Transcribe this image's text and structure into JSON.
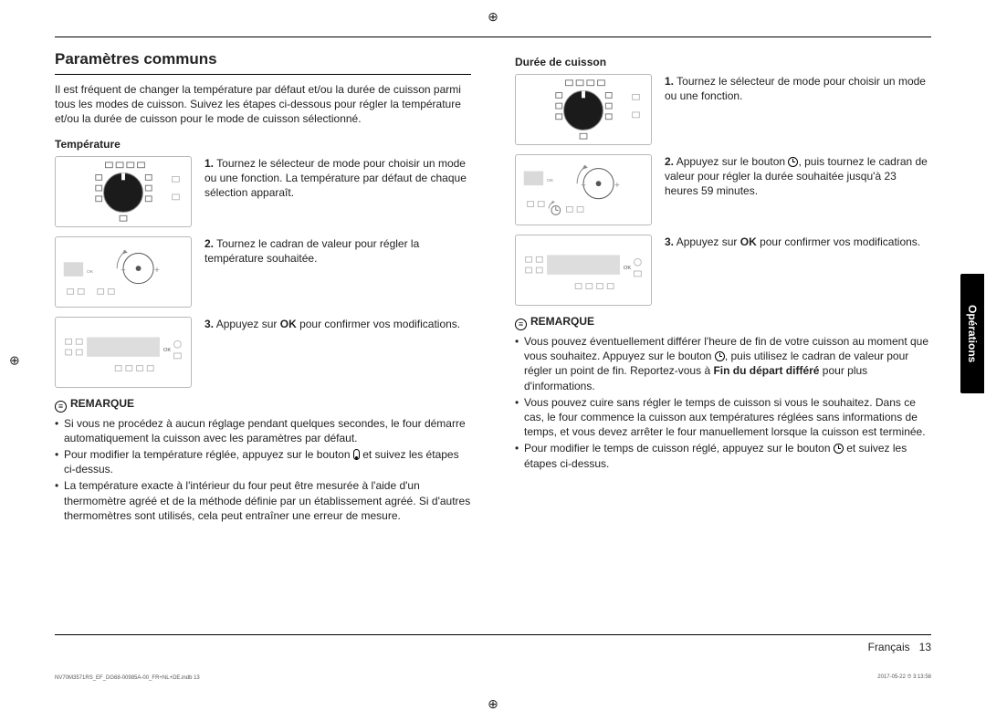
{
  "section_title": "Paramètres communs",
  "intro": "Il est fréquent de changer la température par défaut et/ou la durée de cuisson parmi tous les modes de cuisson. Suivez les étapes ci-dessous pour régler la température et/ou la durée de cuisson pour le mode de cuisson sélectionné.",
  "left": {
    "subhead": "Température",
    "steps": [
      {
        "n": "1.",
        "t": "Tournez le sélecteur de mode pour choisir un mode ou une fonction. La température par défaut de chaque sélection apparaît."
      },
      {
        "n": "2.",
        "t": "Tournez le cadran de valeur pour régler la température souhaitée."
      },
      {
        "n": "3.",
        "ok": "OK",
        "t": " pour confirmer vos modifications.",
        "pre": "Appuyez sur "
      }
    ],
    "remark_label": "REMARQUE",
    "notes": [
      "Si vous ne procédez à aucun réglage pendant quelques secondes, le four démarre automatiquement la cuisson avec les paramètres par défaut.",
      "Pour modifier la température réglée, appuyez sur le bouton __THERM__ et suivez les étapes ci-dessus.",
      "La température exacte à l'intérieur du four peut être mesurée à l'aide d'un thermomètre agréé et de la méthode définie par un établissement agréé. Si d'autres thermomètres sont utilisés, cela peut entraîner une erreur de mesure."
    ]
  },
  "right": {
    "subhead": "Durée de cuisson",
    "steps": [
      {
        "n": "1.",
        "t": "Tournez le sélecteur de mode pour choisir un mode ou une fonction."
      },
      {
        "n": "2.",
        "pre": "Appuyez sur le bouton ",
        "icon": "clock",
        "t": ", puis tournez le cadran de valeur pour régler la durée souhaitée jusqu'à 23 heures 59 minutes."
      },
      {
        "n": "3.",
        "pre": "Appuyez sur ",
        "ok": "OK",
        "t": " pour confirmer vos modifications."
      }
    ],
    "remark_label": "REMARQUE",
    "notes": [
      "Vous pouvez éventuellement différer l'heure de fin de votre cuisson au moment que vous souhaitez. Appuyez sur le bouton __CLOCK__, puis utilisez le cadran de valeur pour régler un point de fin. Reportez-vous à __B__Fin du départ différé__/B__ pour plus d'informations.",
      "Vous pouvez cuire sans régler le temps de cuisson si vous le souhaitez. Dans ce cas, le four commence la cuisson aux températures réglées sans informations de temps, et vous devez arrêter le four manuellement lorsque la cuisson est terminée.",
      "Pour modifier le temps de cuisson réglé, appuyez sur le bouton __CLOCK__ et suivez les étapes ci-dessus."
    ]
  },
  "side_tab": "Opérations",
  "footer": {
    "lang": "Français",
    "page": "13",
    "file": "NV70M3571RS_EF_DG68-00985A-00_FR+NL+DE.indb   13",
    "date": "2017-05-22   ⏱ 3:13:58"
  },
  "panels": {
    "mode_dial": {
      "type": "mode-dial"
    },
    "value_dial": {
      "type": "value-dial"
    },
    "lcd_ok": {
      "type": "lcd"
    }
  },
  "colors": {
    "border": "#b8b8b8",
    "text": "#222",
    "bg": "#fff",
    "tab_bg": "#000",
    "tab_fg": "#fff"
  }
}
